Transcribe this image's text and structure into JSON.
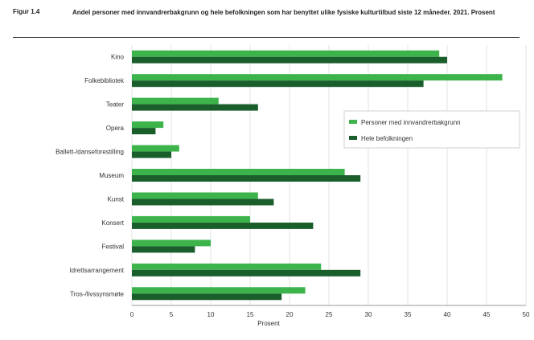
{
  "figure": {
    "label": "Figur 1.4",
    "title": "Andel personer med innvandrerbakgrunn og hele befolkningen som har benyttet ulike fysiske kulturtilbud siste 12 måneder. 2021. Prosent"
  },
  "chart_data": {
    "type": "bar",
    "orientation": "horizontal",
    "categories": [
      "Kino",
      "Folkebibliotek",
      "Teater",
      "Opera",
      "Ballett-/danseforestilling",
      "Museum",
      "Kunst",
      "Konsert",
      "Festival",
      "Idrettsarrangement",
      "Tros-/livssynsmøte"
    ],
    "series": [
      {
        "name": "Personer med innvandrerbakgrunn",
        "color": "#3cb44b",
        "values": [
          39,
          47,
          11,
          4,
          6,
          27,
          16,
          15,
          10,
          24,
          22
        ]
      },
      {
        "name": "Hele befolkningen",
        "color": "#1a5e2c",
        "values": [
          40,
          37,
          16,
          3,
          5,
          29,
          18,
          23,
          8,
          29,
          19
        ]
      }
    ],
    "xlabel": "Prosent",
    "ylabel": "",
    "xlim": [
      0,
      50
    ],
    "xticks": [
      0,
      5,
      10,
      15,
      20,
      25,
      30,
      35,
      40,
      45,
      50
    ],
    "grid": "vertical",
    "legend_position": "right"
  }
}
